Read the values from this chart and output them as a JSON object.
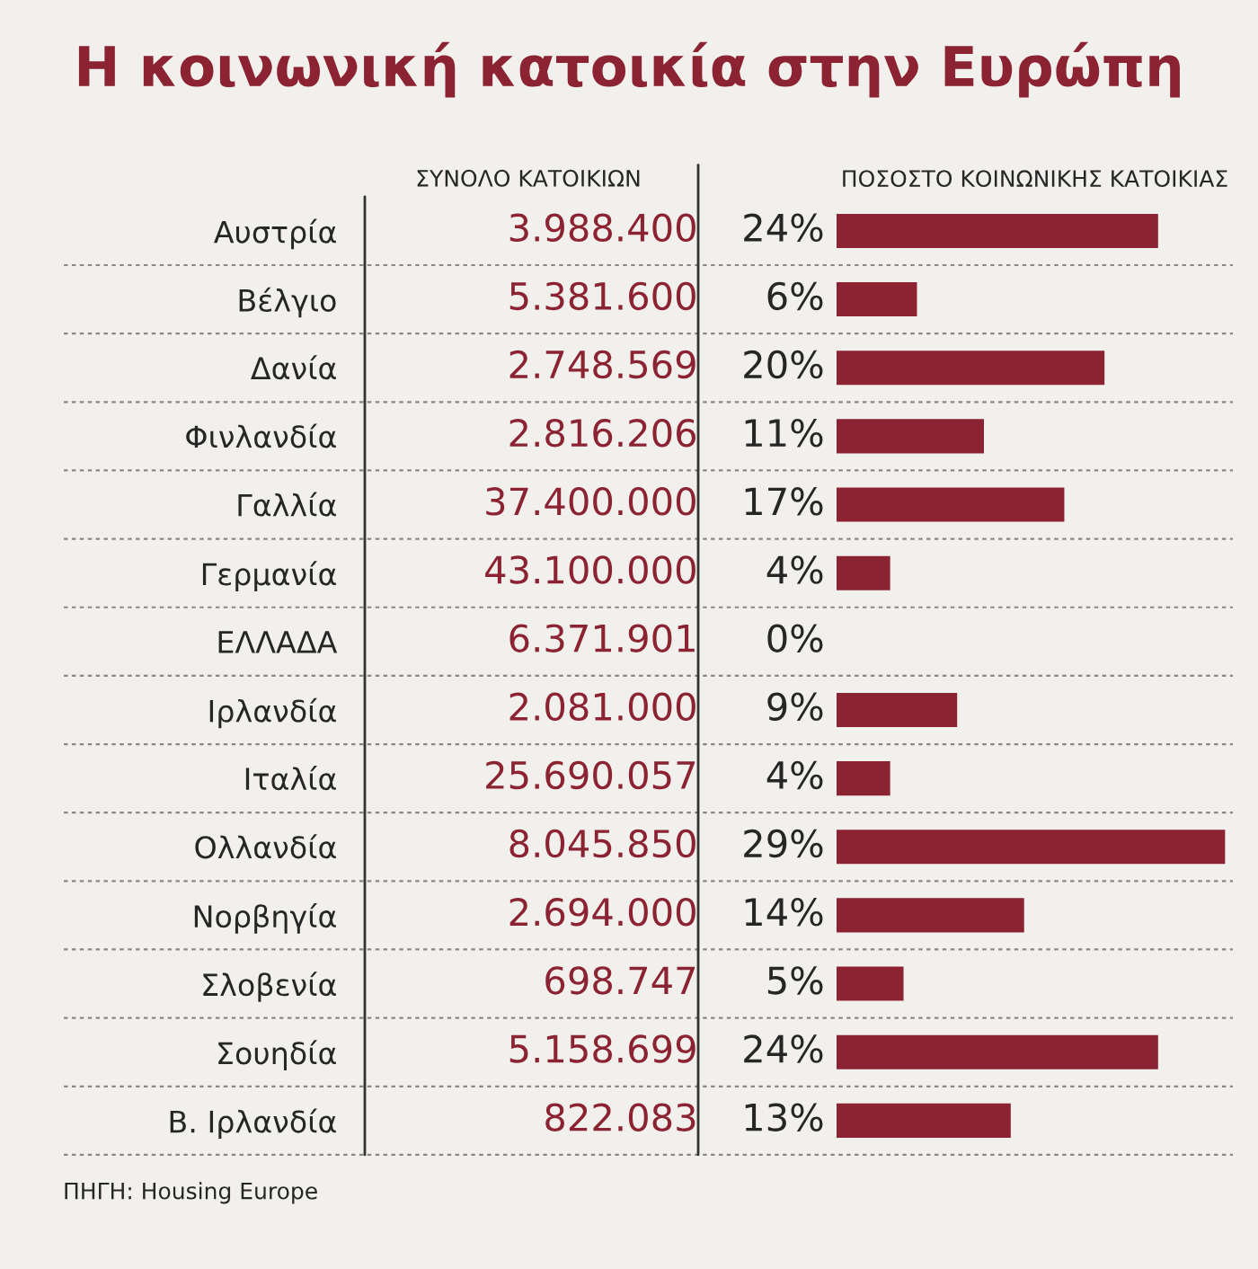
{
  "chart_data": {
    "type": "bar",
    "orientation": "horizontal",
    "title": "Η κοινωνική κατοικία στην Ευρώπη",
    "xlabel": "ΠΟΣΟΣΤΟ ΚΟΙΝΩΝΙΚΗΣ ΚΑΤΟΙΚΙΑΣ",
    "tick_labels": "y",
    "categories": [
      "Αυστρία",
      "Βέλγιο",
      "Δανία",
      "Φινλανδία",
      "Γαλλία",
      "Γερμανία",
      "ΕΛΛΑΔΑ",
      "Ιρλανδία",
      "Ιταλία",
      "Ολλανδία",
      "Νορβηγία",
      "Σλοβενία",
      "Σουηδία",
      "Β. Ιρλανδία"
    ],
    "values": [
      24,
      6,
      20,
      11,
      17,
      4,
      0,
      9,
      4,
      29,
      14,
      5,
      24,
      13
    ],
    "value_labels": [
      "24%",
      "6%",
      "20%",
      "11%",
      "17%",
      "4%",
      "0%",
      "9%",
      "4%",
      "29%",
      "14%",
      "5%",
      "24%",
      "13%"
    ],
    "color": "#8b2332",
    "annotations": [
      "ΣΥΝΟΛΟ ΚΑΤΟΙΚΙΩΝ",
      "3.988.400",
      "5.381.600",
      "2.748.569",
      "2.816.206",
      "37.400.000",
      "43.100.000",
      "6.371.901",
      "2.081.000",
      "25.690.057",
      "8.045.850",
      "2.694.000",
      "698.747",
      "5.158.699",
      "822.083",
      "ΠΗΓΗ: Housing Europe"
    ]
  }
}
